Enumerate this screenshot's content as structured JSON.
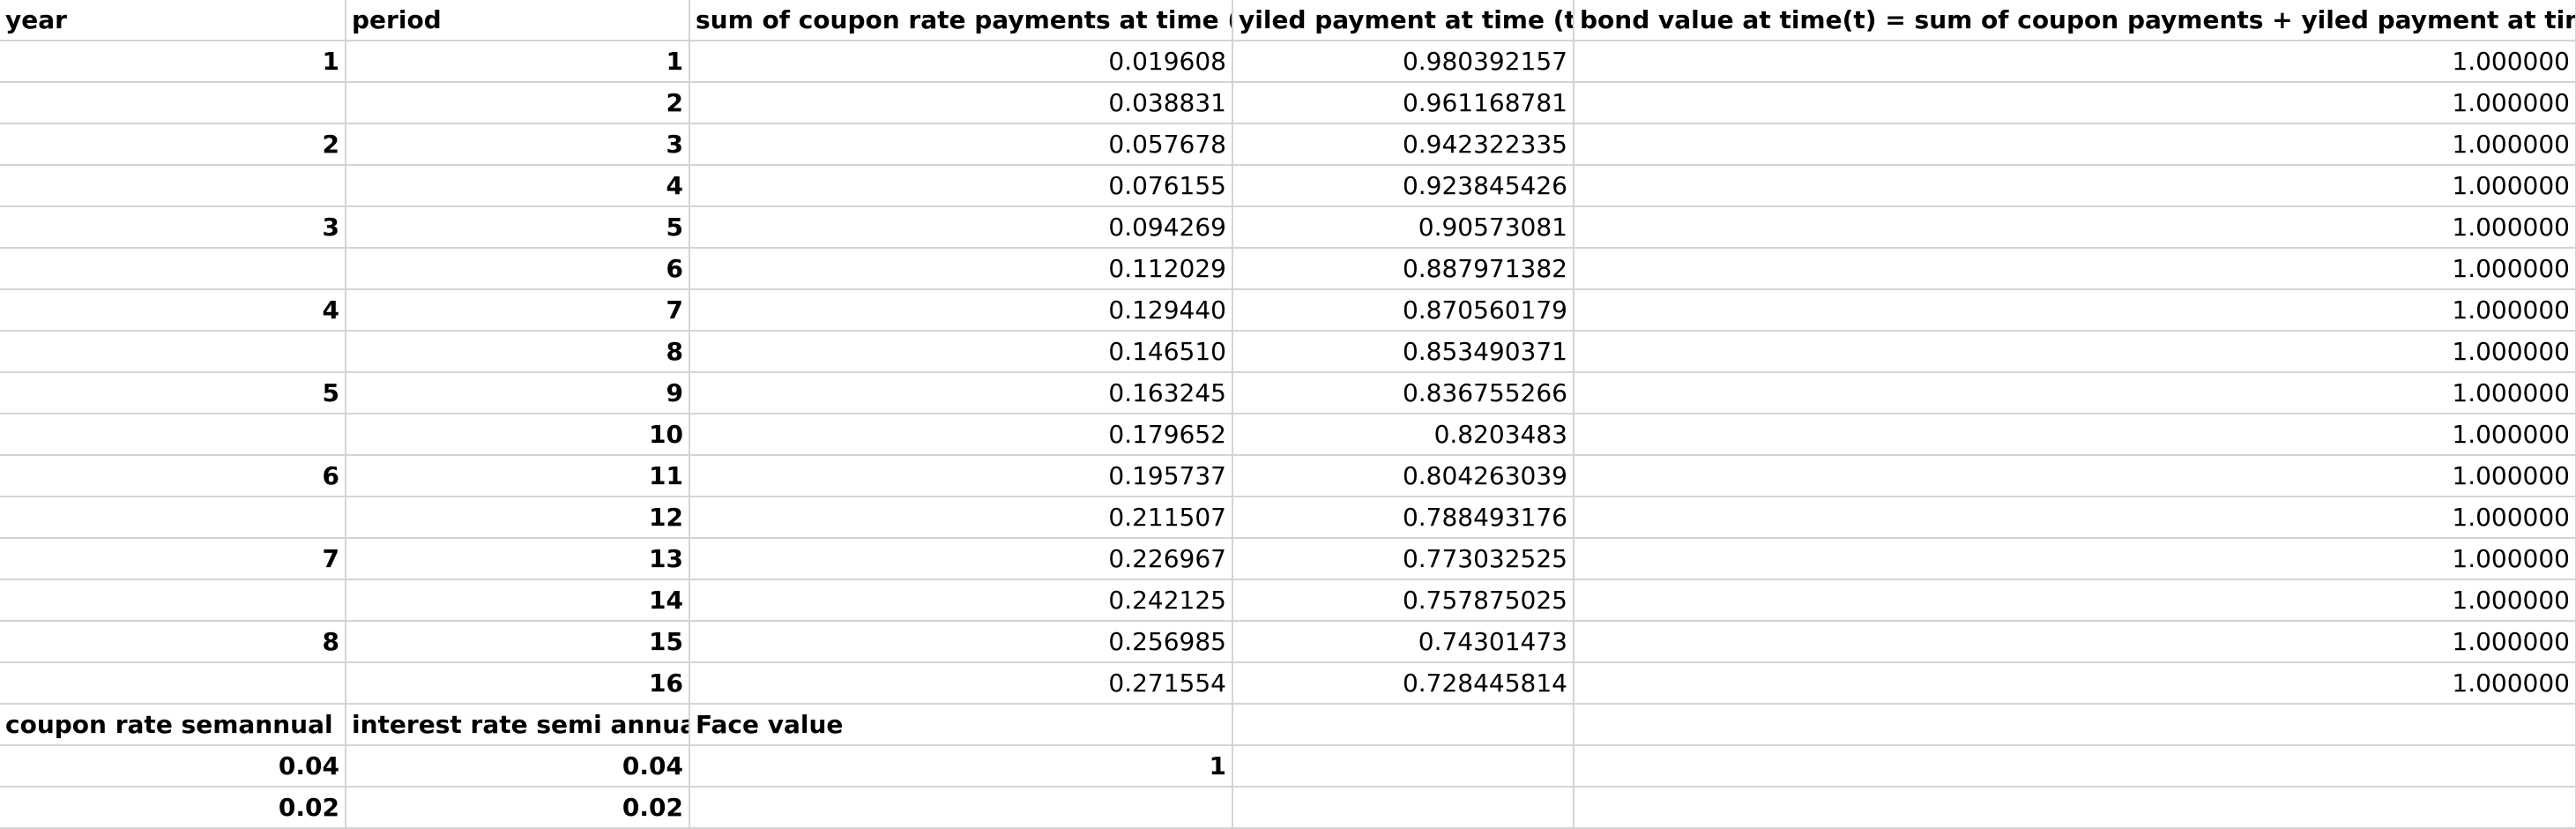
{
  "headers": [
    "year",
    "period",
    "sum of coupon rate payments at time (t)",
    "yiled payment at time (t)",
    "bond value at time(t) = sum of coupon payments + yiled payment at time (t)"
  ],
  "rows": [
    [
      "1",
      "1",
      "0.019608",
      "0.980392157",
      "1.000000"
    ],
    [
      "",
      "2",
      "0.038831",
      "0.961168781",
      "1.000000"
    ],
    [
      "2",
      "3",
      "0.057678",
      "0.942322335",
      "1.000000"
    ],
    [
      "",
      "4",
      "0.076155",
      "0.923845426",
      "1.000000"
    ],
    [
      "3",
      "5",
      "0.094269",
      "0.90573081",
      "1.000000"
    ],
    [
      "",
      "6",
      "0.112029",
      "0.887971382",
      "1.000000"
    ],
    [
      "4",
      "7",
      "0.129440",
      "0.870560179",
      "1.000000"
    ],
    [
      "",
      "8",
      "0.146510",
      "0.853490371",
      "1.000000"
    ],
    [
      "5",
      "9",
      "0.163245",
      "0.836755266",
      "1.000000"
    ],
    [
      "",
      "10",
      "0.179652",
      "0.8203483",
      "1.000000"
    ],
    [
      "6",
      "11",
      "0.195737",
      "0.804263039",
      "1.000000"
    ],
    [
      "",
      "12",
      "0.211507",
      "0.788493176",
      "1.000000"
    ],
    [
      "7",
      "13",
      "0.226967",
      "0.773032525",
      "1.000000"
    ],
    [
      "",
      "14",
      "0.242125",
      "0.757875025",
      "1.000000"
    ],
    [
      "8",
      "15",
      "0.256985",
      "0.74301473",
      "1.000000"
    ],
    [
      "",
      "16",
      "0.271554",
      "0.728445814",
      "1.000000"
    ]
  ],
  "params_headers": [
    "coupon rate semannual",
    "interest rate semi annual",
    "Face value",
    "",
    ""
  ],
  "params_rows": [
    [
      "0.04",
      "0.04",
      "1",
      "",
      ""
    ],
    [
      "0.02",
      "0.02",
      "",
      "",
      ""
    ]
  ]
}
